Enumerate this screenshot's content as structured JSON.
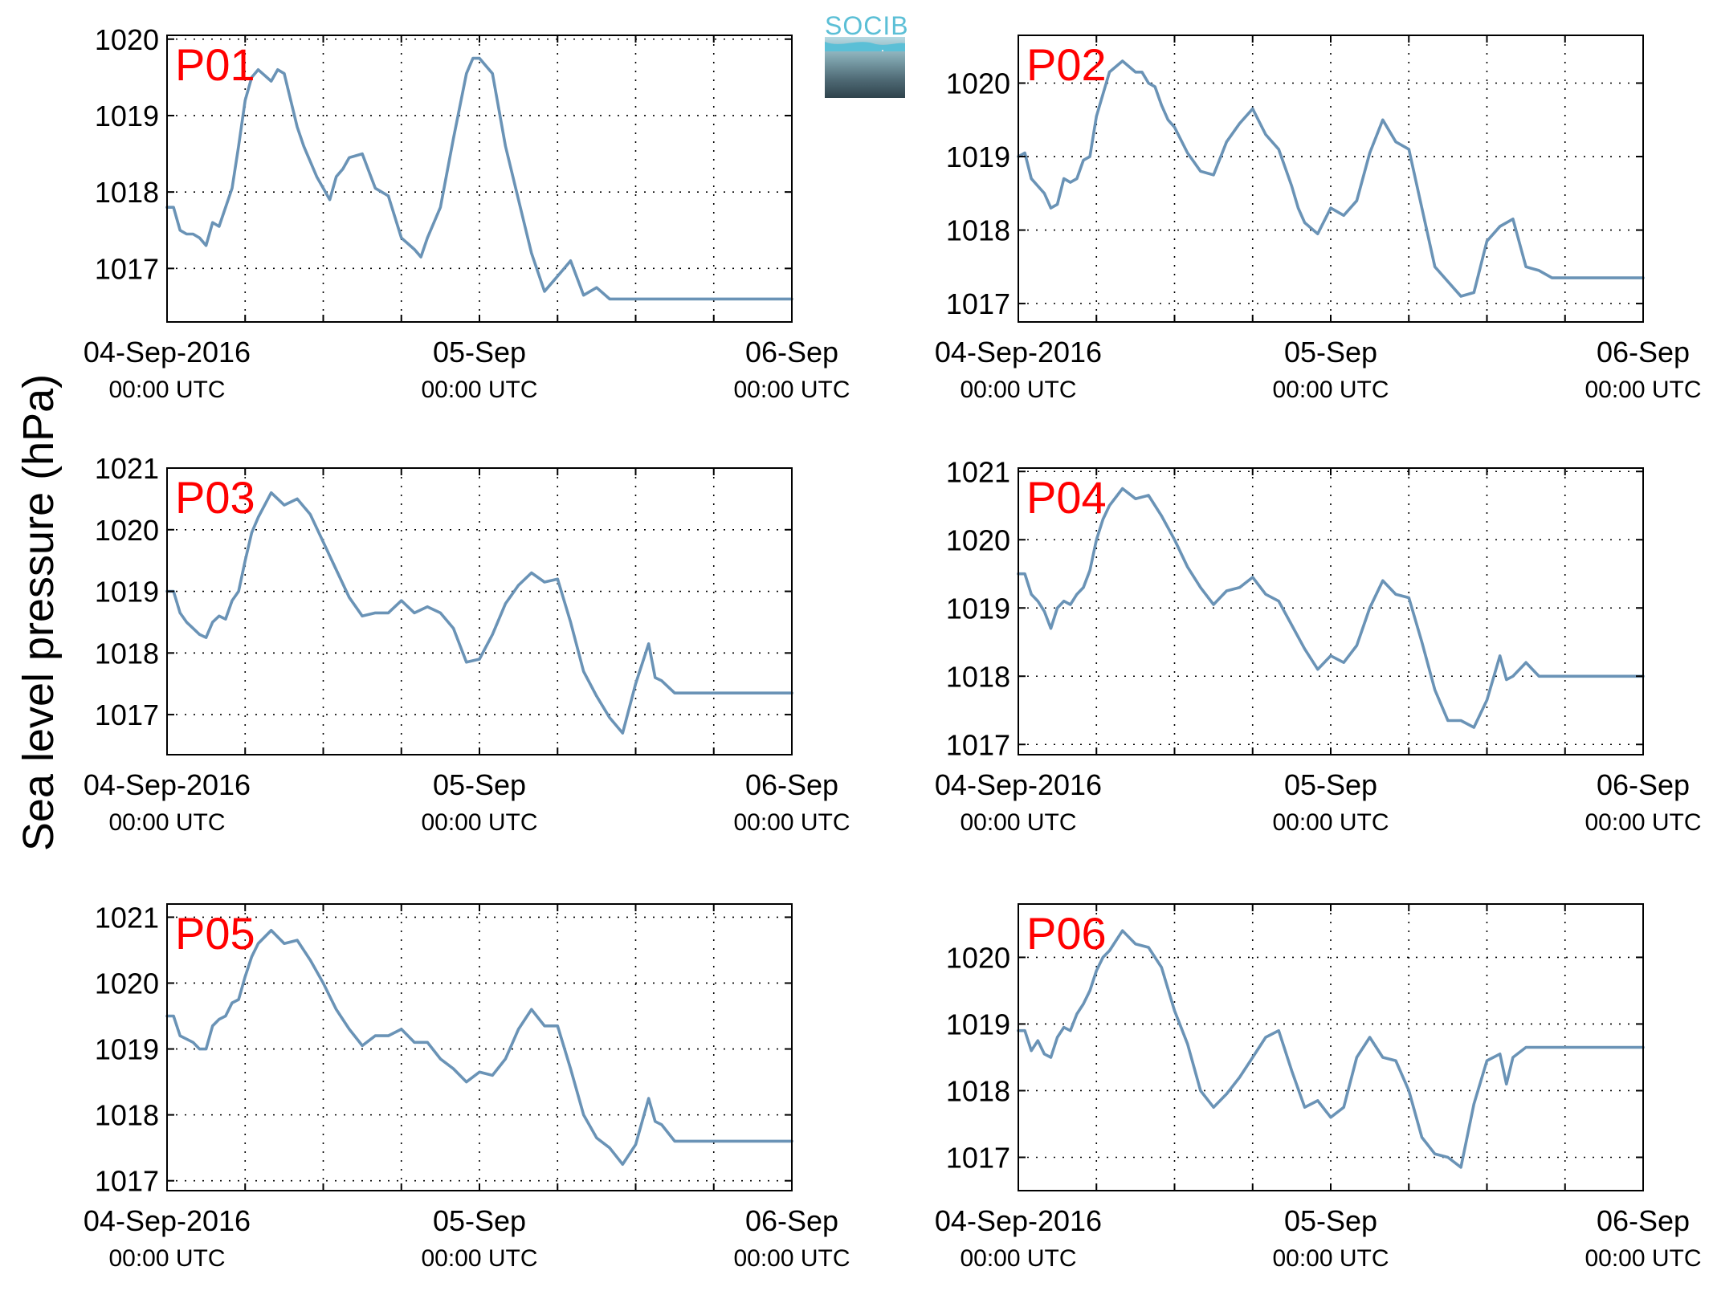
{
  "figure": {
    "ylabel": "Sea level pressure (hPa)",
    "logo_text": "SOCIB"
  },
  "chart_data": [
    {
      "type": "line",
      "panel_label": "P01",
      "ylim": [
        1016.3,
        1020.05
      ],
      "yticks": [
        1017,
        1018,
        1019,
        1020
      ],
      "xticks": [
        {
          "l1": "04-Sep-2016",
          "l2": "00:00 UTC",
          "t": 0
        },
        {
          "l1": "05-Sep",
          "l2": "00:00 UTC",
          "t": 24
        },
        {
          "l1": "06-Sep",
          "l2": "00:00 UTC",
          "t": 48
        }
      ],
      "xlim": [
        0,
        48
      ],
      "grid": true,
      "series": [
        {
          "color": "#6a93b6",
          "x": [
            0,
            0.5,
            1,
            1.5,
            2,
            2.5,
            3,
            3.5,
            4,
            5,
            5.5,
            6,
            6.5,
            7,
            8,
            8.5,
            9,
            9.5,
            10,
            10.5,
            11,
            11.5,
            12,
            12.5,
            13,
            13.5,
            14,
            15,
            16,
            17,
            18,
            19,
            19.5,
            20,
            21,
            22,
            23,
            23.5,
            24,
            25,
            26,
            27,
            27.5,
            28,
            29,
            30,
            30.5,
            31,
            32,
            33,
            34,
            35,
            35.5,
            36,
            37,
            38,
            39,
            40,
            41,
            41.5,
            42,
            43,
            44,
            45,
            45.5,
            46,
            46.5,
            47,
            47.5,
            48
          ],
          "y": [
            1017.8,
            1017.8,
            1017.5,
            1017.45,
            1017.45,
            1017.4,
            1017.3,
            1017.6,
            1017.55,
            1018.05,
            1018.6,
            1019.2,
            1019.5,
            1019.6,
            1019.45,
            1019.6,
            1019.55,
            1019.2,
            1018.85,
            1018.6,
            1018.4,
            1018.2,
            1018.05,
            1017.9,
            1018.2,
            1018.3,
            1018.45,
            1018.5,
            1018.05,
            1017.95,
            1017.4,
            1017.25,
            1017.15,
            1017.4,
            1017.8,
            1018.7,
            1019.55,
            1019.75,
            1019.75,
            1019.55,
            1018.6,
            1017.9,
            1017.55,
            1017.2,
            1016.7,
            1016.9,
            1017.0,
            1017.1,
            1016.65,
            1016.75,
            1016.6,
            1016.6,
            1016.6,
            1016.6,
            1016.6,
            1016.6,
            1016.6,
            1016.6,
            1016.6,
            1016.6,
            1016.6,
            1016.6,
            1016.6,
            1016.6,
            1016.6,
            1016.6,
            1016.6,
            1016.6,
            1016.6,
            1016.6
          ]
        }
      ]
    },
    {
      "type": "line",
      "panel_label": "P02",
      "ylim": [
        1016.75,
        1020.65
      ],
      "yticks": [
        1017,
        1018,
        1019,
        1020
      ],
      "xticks": [
        {
          "l1": "04-Sep-2016",
          "l2": "00:00 UTC",
          "t": 0
        },
        {
          "l1": "05-Sep",
          "l2": "00:00 UTC",
          "t": 24
        },
        {
          "l1": "06-Sep",
          "l2": "00:00 UTC",
          "t": 48
        }
      ],
      "xlim": [
        0,
        48
      ],
      "grid": true,
      "series": [
        {
          "color": "#6a93b6",
          "x": [
            0,
            0.5,
            1,
            1.5,
            2,
            2.5,
            3,
            3.5,
            4,
            4.5,
            5,
            5.5,
            6,
            7,
            8,
            9,
            9.5,
            10,
            10.5,
            11,
            11.5,
            12,
            13,
            14,
            15,
            16,
            17,
            18,
            19,
            20,
            21,
            21.5,
            22,
            23,
            24,
            25,
            26,
            27,
            28,
            29,
            30,
            31,
            32,
            33,
            34,
            35,
            36,
            37,
            38,
            39,
            40,
            41,
            42,
            42.5,
            43,
            44,
            45,
            45.5,
            46,
            47,
            47.5,
            48
          ],
          "y": [
            1019.0,
            1019.05,
            1018.7,
            1018.6,
            1018.5,
            1018.3,
            1018.35,
            1018.7,
            1018.65,
            1018.7,
            1018.95,
            1019.0,
            1019.55,
            1020.15,
            1020.3,
            1020.15,
            1020.15,
            1020.0,
            1019.95,
            1019.7,
            1019.5,
            1019.4,
            1019.05,
            1018.8,
            1018.75,
            1019.2,
            1019.45,
            1019.65,
            1019.3,
            1019.1,
            1018.6,
            1018.3,
            1018.1,
            1017.95,
            1018.3,
            1018.2,
            1018.4,
            1019.05,
            1019.5,
            1019.2,
            1019.1,
            1018.3,
            1017.5,
            1017.3,
            1017.1,
            1017.15,
            1017.85,
            1018.05,
            1018.15,
            1017.5,
            1017.45,
            1017.35,
            1017.35,
            1017.35,
            1017.35,
            1017.35,
            1017.35,
            1017.35,
            1017.35,
            1017.35,
            1017.35,
            1017.35
          ]
        }
      ]
    },
    {
      "type": "line",
      "panel_label": "P03",
      "ylim": [
        1016.35,
        1021.0
      ],
      "yticks": [
        1017,
        1018,
        1019,
        1020,
        1021
      ],
      "xticks": [
        {
          "l1": "04-Sep-2016",
          "l2": "00:00 UTC",
          "t": 0
        },
        {
          "l1": "05-Sep",
          "l2": "00:00 UTC",
          "t": 24
        },
        {
          "l1": "06-Sep",
          "l2": "00:00 UTC",
          "t": 48
        }
      ],
      "xlim": [
        0,
        48
      ],
      "grid": true,
      "series": [
        {
          "color": "#6a93b6",
          "x": [
            0,
            0.5,
            1,
            1.5,
            2,
            2.5,
            3,
            3.5,
            4,
            4.5,
            5,
            5.5,
            6,
            6.5,
            7,
            8,
            9,
            10,
            11,
            12,
            13,
            14,
            15,
            16,
            17,
            18,
            19,
            20,
            21,
            22,
            23,
            24,
            25,
            26,
            27,
            28,
            29,
            30,
            31,
            32,
            33,
            34,
            35,
            36,
            37,
            37.5,
            38,
            39,
            40,
            41,
            42,
            43,
            44,
            45,
            46,
            47,
            48
          ],
          "y": [
            1019.0,
            1019.0,
            1018.65,
            1018.5,
            1018.4,
            1018.3,
            1018.25,
            1018.5,
            1018.6,
            1018.55,
            1018.85,
            1019.0,
            1019.5,
            1019.95,
            1020.2,
            1020.6,
            1020.4,
            1020.5,
            1020.25,
            1019.8,
            1019.35,
            1018.9,
            1018.6,
            1018.65,
            1018.65,
            1018.85,
            1018.65,
            1018.75,
            1018.65,
            1018.4,
            1017.85,
            1017.9,
            1018.3,
            1018.8,
            1019.1,
            1019.3,
            1019.15,
            1019.2,
            1018.5,
            1017.7,
            1017.3,
            1016.95,
            1016.7,
            1017.5,
            1018.15,
            1017.6,
            1017.55,
            1017.35,
            1017.35,
            1017.35,
            1017.35,
            1017.35,
            1017.35,
            1017.35,
            1017.35,
            1017.35,
            1017.35
          ]
        }
      ]
    },
    {
      "type": "line",
      "panel_label": "P04",
      "ylim": [
        1016.85,
        1021.05
      ],
      "yticks": [
        1017,
        1018,
        1019,
        1020,
        1021
      ],
      "xticks": [
        {
          "l1": "04-Sep-2016",
          "l2": "00:00 UTC",
          "t": 0
        },
        {
          "l1": "05-Sep",
          "l2": "00:00 UTC",
          "t": 24
        },
        {
          "l1": "06-Sep",
          "l2": "00:00 UTC",
          "t": 48
        }
      ],
      "xlim": [
        0,
        48
      ],
      "grid": true,
      "series": [
        {
          "color": "#6a93b6",
          "x": [
            0,
            0.5,
            1,
            1.5,
            2,
            2.5,
            3,
            3.5,
            4,
            4.5,
            5,
            5.5,
            6,
            6.5,
            7,
            8,
            9,
            10,
            11,
            12,
            13,
            14,
            15,
            16,
            17,
            18,
            19,
            20,
            21,
            22,
            23,
            24,
            25,
            26,
            27,
            28,
            29,
            30,
            31,
            32,
            33,
            34,
            35,
            36,
            37,
            37.5,
            38,
            39,
            40,
            41,
            42,
            43,
            44,
            45,
            46,
            47,
            48
          ],
          "y": [
            1019.5,
            1019.5,
            1019.2,
            1019.1,
            1018.95,
            1018.7,
            1019.0,
            1019.1,
            1019.05,
            1019.2,
            1019.3,
            1019.55,
            1020.0,
            1020.3,
            1020.5,
            1020.75,
            1020.6,
            1020.65,
            1020.35,
            1020.0,
            1019.6,
            1019.3,
            1019.05,
            1019.25,
            1019.3,
            1019.45,
            1019.2,
            1019.1,
            1018.75,
            1018.4,
            1018.1,
            1018.3,
            1018.2,
            1018.45,
            1019.0,
            1019.4,
            1019.2,
            1019.15,
            1018.5,
            1017.8,
            1017.35,
            1017.35,
            1017.25,
            1017.65,
            1018.3,
            1017.95,
            1018.0,
            1018.2,
            1018.0,
            1018.0,
            1018.0,
            1018.0,
            1018.0,
            1018.0,
            1018.0,
            1018.0,
            1018.0
          ]
        }
      ]
    },
    {
      "type": "line",
      "panel_label": "P05",
      "ylim": [
        1016.85,
        1021.2
      ],
      "yticks": [
        1017,
        1018,
        1019,
        1020,
        1021
      ],
      "xticks": [
        {
          "l1": "04-Sep-2016",
          "l2": "00:00 UTC",
          "t": 0
        },
        {
          "l1": "05-Sep",
          "l2": "00:00 UTC",
          "t": 24
        },
        {
          "l1": "06-Sep",
          "l2": "00:00 UTC",
          "t": 48
        }
      ],
      "xlim": [
        0,
        48
      ],
      "grid": true,
      "series": [
        {
          "color": "#6a93b6",
          "x": [
            0,
            0.5,
            1,
            1.5,
            2,
            2.5,
            3,
            3.5,
            4,
            4.5,
            5,
            5.5,
            6,
            6.5,
            7,
            8,
            9,
            10,
            11,
            12,
            13,
            14,
            15,
            16,
            17,
            18,
            19,
            20,
            21,
            22,
            23,
            24,
            25,
            26,
            27,
            28,
            29,
            30,
            31,
            32,
            33,
            34,
            35,
            36,
            37,
            37.5,
            38,
            39,
            40,
            41,
            42,
            43,
            44,
            45,
            46,
            47,
            48
          ],
          "y": [
            1019.5,
            1019.5,
            1019.2,
            1019.15,
            1019.1,
            1019.0,
            1019.0,
            1019.35,
            1019.45,
            1019.5,
            1019.7,
            1019.75,
            1020.1,
            1020.4,
            1020.6,
            1020.8,
            1020.6,
            1020.65,
            1020.35,
            1020.0,
            1019.6,
            1019.3,
            1019.05,
            1019.2,
            1019.2,
            1019.3,
            1019.1,
            1019.1,
            1018.85,
            1018.7,
            1018.5,
            1018.65,
            1018.6,
            1018.85,
            1019.3,
            1019.6,
            1019.35,
            1019.35,
            1018.7,
            1018.0,
            1017.65,
            1017.5,
            1017.25,
            1017.55,
            1018.25,
            1017.9,
            1017.85,
            1017.6,
            1017.6,
            1017.6,
            1017.6,
            1017.6,
            1017.6,
            1017.6,
            1017.6,
            1017.6,
            1017.6
          ]
        }
      ]
    },
    {
      "type": "line",
      "panel_label": "P06",
      "ylim": [
        1016.5,
        1020.8
      ],
      "yticks": [
        1017,
        1018,
        1019,
        1020
      ],
      "xticks": [
        {
          "l1": "04-Sep-2016",
          "l2": "00:00 UTC",
          "t": 0
        },
        {
          "l1": "05-Sep",
          "l2": "00:00 UTC",
          "t": 24
        },
        {
          "l1": "06-Sep",
          "l2": "00:00 UTC",
          "t": 48
        }
      ],
      "xlim": [
        0,
        48
      ],
      "grid": true,
      "series": [
        {
          "color": "#6a93b6",
          "x": [
            0,
            0.5,
            1,
            1.5,
            2,
            2.5,
            3,
            3.5,
            4,
            4.5,
            5,
            5.5,
            6,
            6.5,
            7,
            8,
            9,
            10,
            11,
            12,
            13,
            14,
            15,
            16,
            17,
            18,
            19,
            20,
            21,
            22,
            23,
            24,
            25,
            26,
            27,
            28,
            29,
            30,
            31,
            32,
            33,
            34,
            35,
            36,
            37,
            37.5,
            38,
            39,
            40,
            41,
            42,
            43,
            44,
            45,
            46,
            47,
            48
          ],
          "y": [
            1018.9,
            1018.9,
            1018.6,
            1018.75,
            1018.55,
            1018.5,
            1018.8,
            1018.95,
            1018.9,
            1019.15,
            1019.3,
            1019.5,
            1019.8,
            1020.0,
            1020.1,
            1020.4,
            1020.2,
            1020.15,
            1019.85,
            1019.2,
            1018.7,
            1018.0,
            1017.75,
            1017.95,
            1018.2,
            1018.5,
            1018.8,
            1018.9,
            1018.3,
            1017.75,
            1017.85,
            1017.6,
            1017.75,
            1018.5,
            1018.8,
            1018.5,
            1018.45,
            1018.0,
            1017.3,
            1017.05,
            1017.0,
            1016.85,
            1017.8,
            1018.45,
            1018.55,
            1018.1,
            1018.5,
            1018.65,
            1018.65,
            1018.65,
            1018.65,
            1018.65,
            1018.65,
            1018.65,
            1018.65,
            1018.65,
            1018.65
          ]
        }
      ]
    }
  ]
}
